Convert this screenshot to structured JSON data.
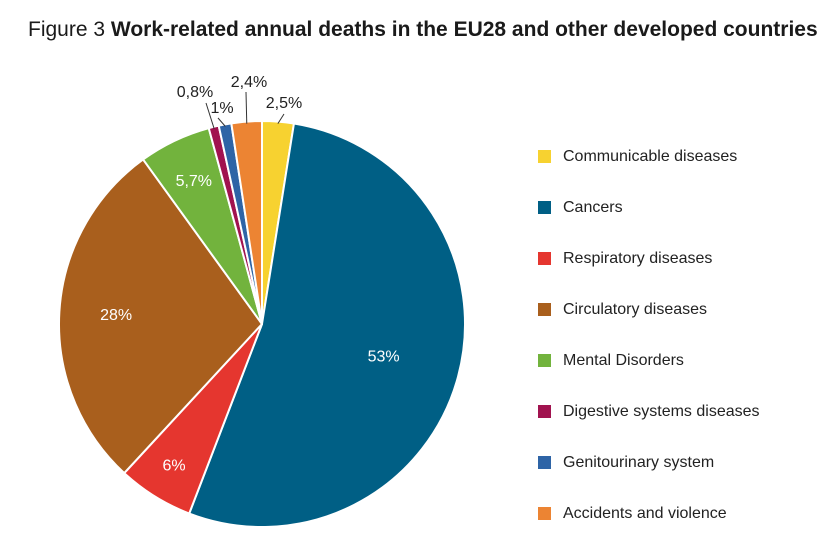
{
  "title": {
    "prefix": "Figure 3",
    "text": "Work-related annual deaths in the EU28 and other developed countries"
  },
  "chart_data": {
    "type": "pie",
    "title": "Work-related annual deaths in the EU28 and other developed countries",
    "legend_position": "right",
    "slices": [
      {
        "label": "Communicable diseases",
        "value": 2.5,
        "display": "2,5%",
        "color": "#f7d230"
      },
      {
        "label": "Cancers",
        "value": 53,
        "display": "53%",
        "color": "#005f85"
      },
      {
        "label": "Respiratory diseases",
        "value": 6,
        "display": "6%",
        "color": "#e5362f"
      },
      {
        "label": "Circulatory diseases",
        "value": 28,
        "display": "28%",
        "color": "#a95f1d"
      },
      {
        "label": "Mental Disorders",
        "value": 5.7,
        "display": "5,7%",
        "color": "#72b33d"
      },
      {
        "label": "Digestive systems diseases",
        "value": 0.8,
        "display": "0,8%",
        "color": "#a1134f"
      },
      {
        "label": "Genitourinary system",
        "value": 1,
        "display": "1%",
        "color": "#2e64a6"
      },
      {
        "label": "Accidents and violence",
        "value": 2.4,
        "display": "2,4%",
        "color": "#ec8433"
      }
    ]
  }
}
